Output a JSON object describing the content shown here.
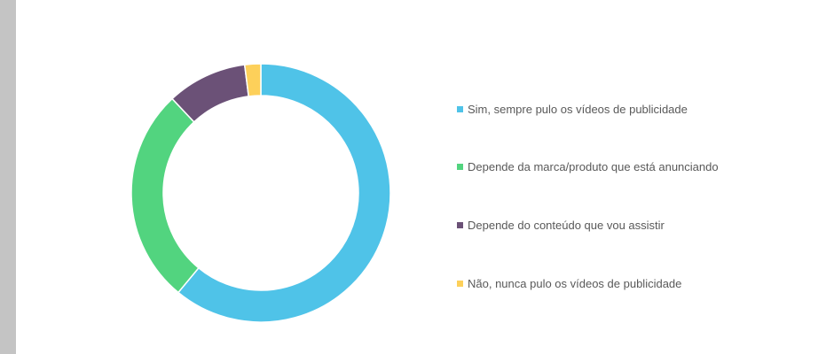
{
  "chart_data": {
    "type": "pie",
    "variant": "donut",
    "legend_position": "right",
    "categories": [
      "Sim, sempre pulo os vídeos de publicidade",
      "Depende da marca/produto que está anunciando",
      "Depende do conteúdo que vou assistir",
      "Não, nunca pulo os vídeos de publicidade"
    ],
    "values": [
      61,
      27,
      10,
      2
    ],
    "colors": [
      "#4fc3e8",
      "#52d47f",
      "#6b5177",
      "#fdd05a"
    ],
    "title": ""
  }
}
